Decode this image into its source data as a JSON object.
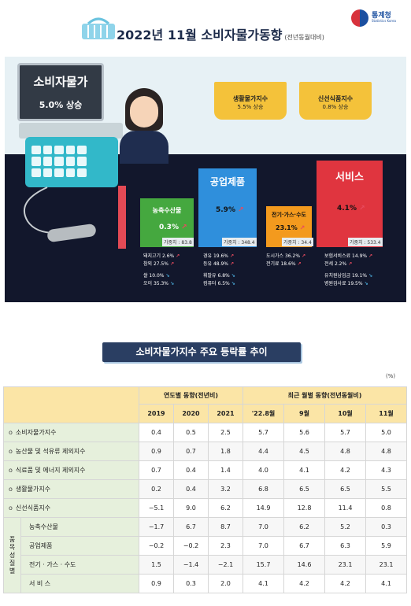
{
  "header": {
    "title": "2022년 11월 소비자물가동향",
    "subtitle": "(전년동월대비)",
    "logo_name": "통계청",
    "logo_eng": "Statistics Korea"
  },
  "cpi_board": {
    "title": "소비자물가",
    "value": "5.0% 상승"
  },
  "baskets": [
    {
      "name": "생활물가지수",
      "value": "5.5% 상승"
    },
    {
      "name": "신선식품지수",
      "value": "0.8% 상승"
    }
  ],
  "products": [
    {
      "name": "농축수산물",
      "value": "0.3%",
      "direction": "up",
      "weight": "가중치 : 83.8",
      "color": "#d63b3b",
      "items": [
        {
          "label": "돼지고기 2.6%",
          "direction": "up"
        },
        {
          "label": "참외 27.5%",
          "direction": "up"
        },
        {
          "label": "쌀 10.0%",
          "direction": "down"
        },
        {
          "label": "오이 35.3%",
          "direction": "down"
        }
      ]
    },
    {
      "name": "공업제품",
      "value": "5.9%",
      "direction": "up",
      "weight": "가중치 : 348.4",
      "color": "#2f8fdc",
      "items": [
        {
          "label": "경유 19.6%",
          "direction": "up"
        },
        {
          "label": "등유 48.9%",
          "direction": "up"
        },
        {
          "label": "휘발유 6.8%",
          "direction": "down"
        },
        {
          "label": "컴퓨터 6.5%",
          "direction": "down"
        }
      ]
    },
    {
      "name": "전기·가스·수도",
      "value": "23.1%",
      "direction": "up",
      "weight": "가중치 : 34.4",
      "color": "#f39a1e",
      "items": [
        {
          "label": "도시가스 36.2%",
          "direction": "up"
        },
        {
          "label": "전기료 18.6%",
          "direction": "up"
        }
      ]
    },
    {
      "name": "서비스",
      "value": "4.1%",
      "direction": "up",
      "weight": "가중치 : 533.4",
      "color": "#e0353f",
      "items": [
        {
          "label": "보험서비스료 14.9%",
          "direction": "up"
        },
        {
          "label": "전세 2.2%",
          "direction": "up"
        },
        {
          "label": "유치원납입금 19.1%",
          "direction": "down"
        },
        {
          "label": "병원검사료 19.5%",
          "direction": "down"
        }
      ]
    }
  ],
  "table": {
    "title": "소비자물가지수 주요 등락률 추이",
    "unit": "(%)",
    "group_yearly": "연도별 동향(전년비)",
    "group_monthly": "최근 월별 동향(전년동월비)",
    "columns": [
      "2019",
      "2020",
      "2021",
      "'22.8월",
      "9월",
      "10월",
      "11월"
    ],
    "side_label": "품목성질별",
    "rows": [
      {
        "label": "소비자물가지수",
        "values": [
          "0.4",
          "0.5",
          "2.5",
          "5.7",
          "5.6",
          "5.7",
          "5.0"
        ]
      },
      {
        "label": "농산물 및 석유류 제외지수",
        "values": [
          "0.9",
          "0.7",
          "1.8",
          "4.4",
          "4.5",
          "4.8",
          "4.8"
        ]
      },
      {
        "label": "식료품 및 에너지 제외지수",
        "values": [
          "0.7",
          "0.4",
          "1.4",
          "4.0",
          "4.1",
          "4.2",
          "4.3"
        ]
      },
      {
        "label": "생활물가지수",
        "values": [
          "0.2",
          "0.4",
          "3.2",
          "6.8",
          "6.5",
          "6.5",
          "5.5"
        ]
      },
      {
        "label": "신선식품지수",
        "values": [
          "−5.1",
          "9.0",
          "6.2",
          "14.9",
          "12.8",
          "11.4",
          "0.8"
        ]
      }
    ],
    "sub_rows": [
      {
        "label": "농축수산물",
        "values": [
          "−1.7",
          "6.7",
          "8.7",
          "7.0",
          "6.2",
          "5.2",
          "0.3"
        ]
      },
      {
        "label": "공업제품",
        "values": [
          "−0.2",
          "−0.2",
          "2.3",
          "7.0",
          "6.7",
          "6.3",
          "5.9"
        ]
      },
      {
        "label": "전기 · 가스 · 수도",
        "values": [
          "1.5",
          "−1.4",
          "−2.1",
          "15.7",
          "14.6",
          "23.1",
          "23.1"
        ]
      },
      {
        "label": "서 비 스",
        "values": [
          "0.9",
          "0.3",
          "2.0",
          "4.1",
          "4.2",
          "4.2",
          "4.1"
        ]
      }
    ]
  }
}
